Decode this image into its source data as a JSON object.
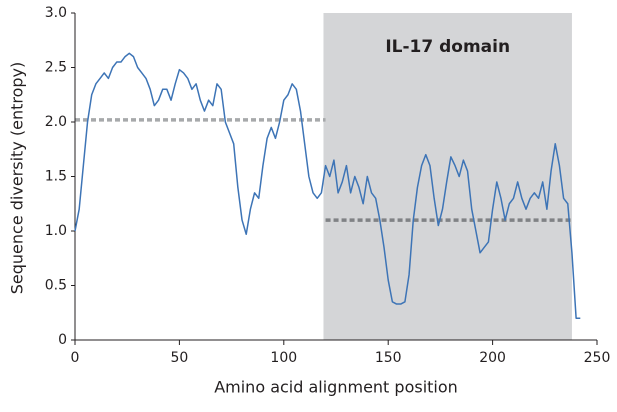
{
  "chart_data": {
    "type": "line",
    "xlabel": "Amino acid alignment position",
    "ylabel": "Sequence diversity (entropy)",
    "xlim": [
      0,
      250
    ],
    "ylim": [
      0,
      3
    ],
    "xticks": [
      0,
      50,
      100,
      150,
      200,
      250
    ],
    "yticks": [
      0,
      0.5,
      {
        "value": 1,
        "label": "1.0"
      },
      1.5,
      {
        "value": 2,
        "label": "2.0"
      },
      2.5,
      {
        "value": 3,
        "label": "3.0"
      }
    ],
    "shaded_region": {
      "label": "IL-17 domain",
      "x": [
        119,
        238
      ],
      "color": "#d4d5d7"
    },
    "reference_lines": [
      {
        "y": 2.02,
        "x": [
          0,
          120
        ],
        "color": "#a7a9ab"
      },
      {
        "y": 1.1,
        "x": [
          120,
          238
        ],
        "color": "#808285"
      }
    ],
    "x": [
      0,
      2,
      4,
      6,
      8,
      10,
      12,
      14,
      16,
      18,
      20,
      22,
      24,
      26,
      28,
      30,
      32,
      34,
      36,
      38,
      40,
      42,
      44,
      46,
      48,
      50,
      52,
      54,
      56,
      58,
      60,
      62,
      64,
      66,
      68,
      70,
      72,
      74,
      76,
      78,
      80,
      82,
      84,
      86,
      88,
      90,
      92,
      94,
      96,
      98,
      100,
      102,
      104,
      106,
      108,
      110,
      112,
      114,
      116,
      118,
      120,
      122,
      124,
      126,
      128,
      130,
      132,
      134,
      136,
      138,
      140,
      142,
      144,
      146,
      148,
      150,
      152,
      154,
      156,
      158,
      160,
      162,
      164,
      166,
      168,
      170,
      172,
      174,
      176,
      178,
      180,
      182,
      184,
      186,
      188,
      190,
      192,
      194,
      196,
      198,
      200,
      202,
      204,
      206,
      208,
      210,
      212,
      214,
      216,
      218,
      220,
      222,
      224,
      226,
      228,
      230,
      232,
      234,
      236,
      238,
      240,
      242
    ],
    "series": [
      {
        "color": "#3d74b6",
        "values": [
          1.0,
          1.2,
          1.6,
          2.0,
          2.25,
          2.35,
          2.4,
          2.45,
          2.4,
          2.5,
          2.55,
          2.55,
          2.6,
          2.63,
          2.6,
          2.5,
          2.45,
          2.4,
          2.3,
          2.15,
          2.2,
          2.3,
          2.3,
          2.2,
          2.35,
          2.48,
          2.45,
          2.4,
          2.3,
          2.35,
          2.2,
          2.1,
          2.2,
          2.15,
          2.35,
          2.3,
          2.0,
          1.9,
          1.8,
          1.4,
          1.1,
          0.97,
          1.2,
          1.35,
          1.3,
          1.6,
          1.85,
          1.95,
          1.85,
          2.0,
          2.2,
          2.25,
          2.35,
          2.3,
          2.1,
          1.8,
          1.5,
          1.35,
          1.3,
          1.35,
          1.6,
          1.5,
          1.65,
          1.35,
          1.45,
          1.6,
          1.35,
          1.5,
          1.4,
          1.25,
          1.5,
          1.35,
          1.3,
          1.1,
          0.85,
          0.55,
          0.35,
          0.33,
          0.33,
          0.35,
          0.6,
          1.1,
          1.4,
          1.6,
          1.7,
          1.6,
          1.3,
          1.05,
          1.2,
          1.45,
          1.68,
          1.6,
          1.5,
          1.65,
          1.55,
          1.2,
          1.0,
          0.8,
          0.85,
          0.9,
          1.2,
          1.45,
          1.3,
          1.1,
          1.25,
          1.3,
          1.45,
          1.3,
          1.2,
          1.3,
          1.35,
          1.3,
          1.45,
          1.2,
          1.55,
          1.8,
          1.6,
          1.3,
          1.25,
          0.8,
          0.2,
          0.2
        ]
      }
    ]
  }
}
